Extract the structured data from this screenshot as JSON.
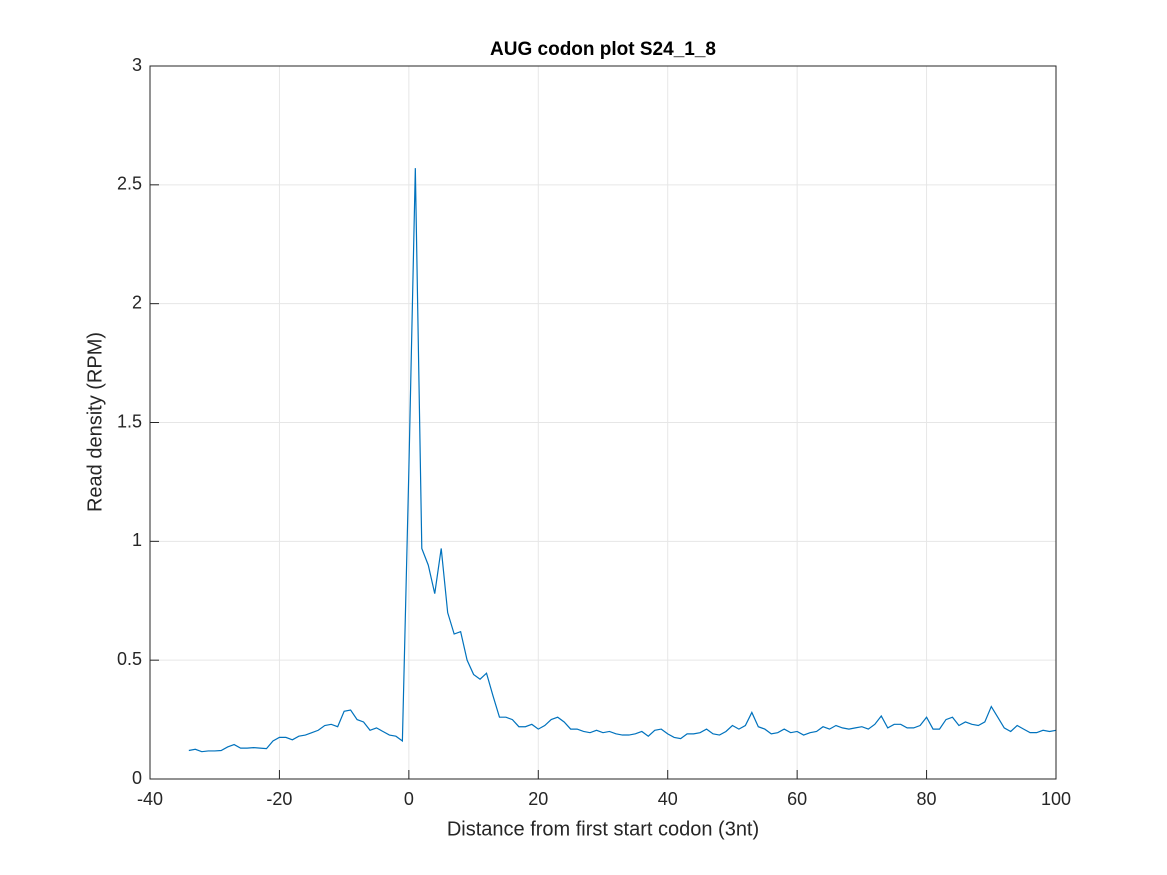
{
  "chart_data": {
    "type": "line",
    "title": "AUG codon plot S24_1_8",
    "x_label": "Distance from first start codon (3nt)",
    "y_label": "Read density (RPM)",
    "xlim": [
      -40,
      100
    ],
    "xticks": [
      -40,
      -20,
      0,
      20,
      40,
      60,
      80,
      100
    ],
    "ylim": [
      0,
      3
    ],
    "yticks": [
      0,
      0.5,
      1,
      1.5,
      2,
      2.5,
      3
    ],
    "grid": true,
    "x": [
      -34,
      -33,
      -32,
      -31,
      -30,
      -29,
      -28,
      -27,
      -26,
      -25,
      -24,
      -23,
      -22,
      -21,
      -20,
      -19,
      -18,
      -17,
      -16,
      -15,
      -14,
      -13,
      -12,
      -11,
      -10,
      -9,
      -8,
      -7,
      -6,
      -5,
      -4,
      -3,
      -2,
      -1,
      0,
      1,
      2,
      3,
      4,
      5,
      6,
      7,
      8,
      9,
      10,
      11,
      12,
      13,
      14,
      15,
      16,
      17,
      18,
      19,
      20,
      21,
      22,
      23,
      24,
      25,
      26,
      27,
      28,
      29,
      30,
      31,
      32,
      33,
      34,
      35,
      36,
      37,
      38,
      39,
      40,
      41,
      42,
      43,
      44,
      45,
      46,
      47,
      48,
      49,
      50,
      51,
      52,
      53,
      54,
      55,
      56,
      57,
      58,
      59,
      60,
      61,
      62,
      63,
      64,
      65,
      66,
      67,
      68,
      69,
      70,
      71,
      72,
      73,
      74,
      75,
      76,
      77,
      78,
      79,
      80,
      81,
      82,
      83,
      84,
      85,
      86,
      87,
      88,
      89,
      90,
      91,
      92,
      93,
      94,
      95,
      96,
      97,
      98,
      99,
      100
    ],
    "series": [
      {
        "color": "#0072bd",
        "values": [
          0.12,
          0.125,
          0.115,
          0.118,
          0.118,
          0.12,
          0.135,
          0.145,
          0.13,
          0.13,
          0.132,
          0.13,
          0.128,
          0.16,
          0.175,
          0.175,
          0.165,
          0.18,
          0.185,
          0.195,
          0.205,
          0.225,
          0.23,
          0.22,
          0.285,
          0.29,
          0.25,
          0.24,
          0.205,
          0.215,
          0.2,
          0.185,
          0.18,
          0.16,
          1.3,
          2.57,
          0.97,
          0.9,
          0.78,
          0.97,
          0.7,
          0.61,
          0.62,
          0.5,
          0.44,
          0.42,
          0.445,
          0.35,
          0.26,
          0.26,
          0.25,
          0.22,
          0.22,
          0.23,
          0.21,
          0.225,
          0.25,
          0.26,
          0.24,
          0.21,
          0.21,
          0.2,
          0.195,
          0.205,
          0.195,
          0.2,
          0.19,
          0.185,
          0.185,
          0.19,
          0.2,
          0.18,
          0.205,
          0.21,
          0.19,
          0.175,
          0.17,
          0.19,
          0.19,
          0.195,
          0.21,
          0.19,
          0.185,
          0.2,
          0.225,
          0.21,
          0.225,
          0.28,
          0.22,
          0.21,
          0.19,
          0.195,
          0.21,
          0.195,
          0.2,
          0.185,
          0.195,
          0.2,
          0.22,
          0.21,
          0.225,
          0.215,
          0.21,
          0.215,
          0.22,
          0.21,
          0.23,
          0.265,
          0.215,
          0.23,
          0.23,
          0.215,
          0.215,
          0.225,
          0.26,
          0.21,
          0.21,
          0.25,
          0.26,
          0.225,
          0.24,
          0.23,
          0.225,
          0.24,
          0.305,
          0.26,
          0.215,
          0.2,
          0.225,
          0.21,
          0.195,
          0.195,
          0.205,
          0.2,
          0.205
        ]
      }
    ]
  }
}
